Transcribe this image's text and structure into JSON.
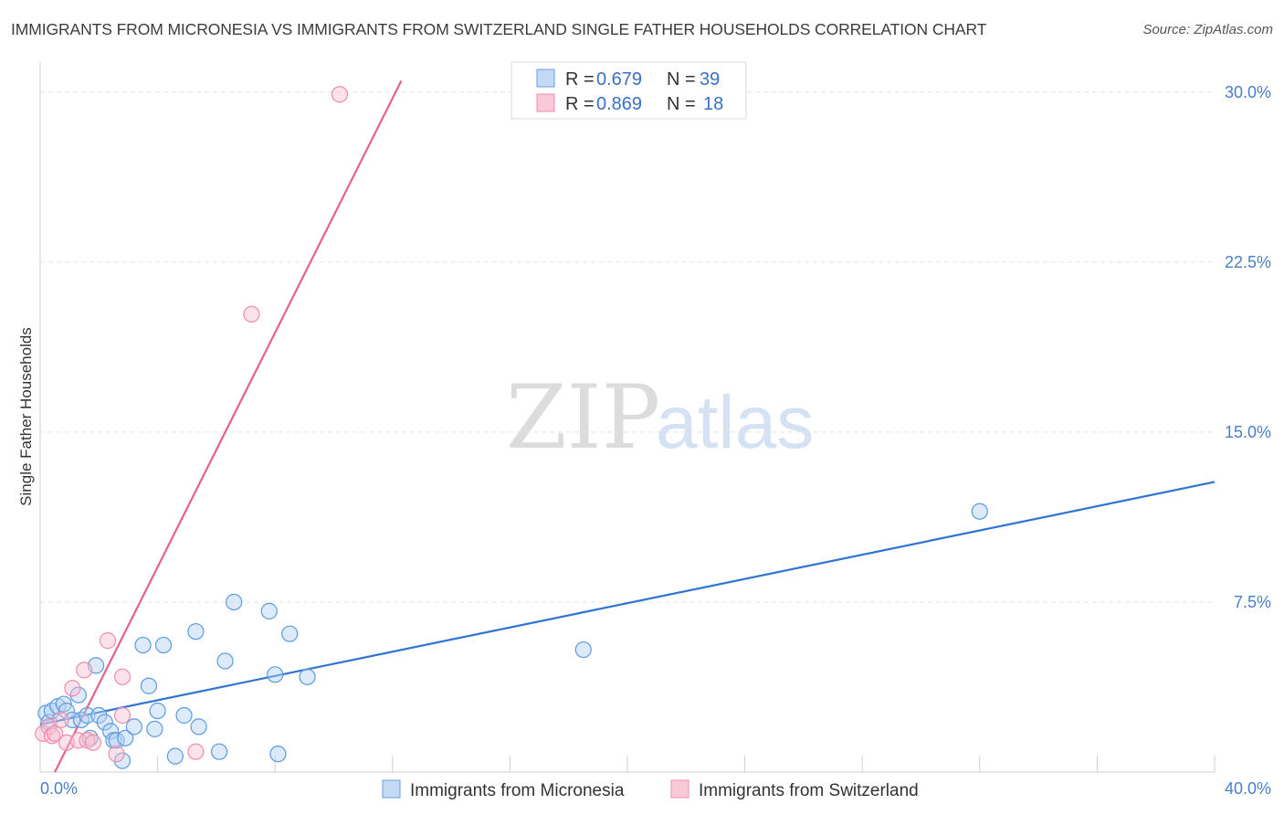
{
  "title": "IMMIGRANTS FROM MICRONESIA VS IMMIGRANTS FROM SWITZERLAND SINGLE FATHER HOUSEHOLDS CORRELATION CHART",
  "source": "Source: ZipAtlas.com",
  "watermark": {
    "zip": "ZIP",
    "atlas": "atlas"
  },
  "colors": {
    "blue": "#5b9be0",
    "blue_line": "#2f74d0",
    "pink": "#f08cab",
    "pink_line": "#e8608f",
    "tick": "#4a7fc8"
  },
  "legend_top": {
    "rows": [
      {
        "r_label": "R = ",
        "r_value": "0.679",
        "n_label": "N = ",
        "n_value": "39"
      },
      {
        "r_label": "R = ",
        "r_value": "0.869",
        "n_label": "N = ",
        "n_value": "18"
      }
    ]
  },
  "chart_data": {
    "type": "scatter",
    "title": "IMMIGRANTS FROM MICRONESIA VS IMMIGRANTS FROM SWITZERLAND SINGLE FATHER HOUSEHOLDS CORRELATION CHART",
    "ylabel": "Single Father Households",
    "xlabel": "",
    "xlim": [
      0,
      40
    ],
    "ylim": [
      0,
      31
    ],
    "x_tick_labels": [
      "0.0%",
      "40.0%"
    ],
    "y_ticks": [
      7.5,
      15.0,
      22.5,
      30.0
    ],
    "y_tick_labels": [
      "7.5%",
      "15.0%",
      "22.5%",
      "30.0%"
    ],
    "series": [
      {
        "name": "Immigrants from Micronesia",
        "color": "blue",
        "points": [
          [
            0.2,
            2.6
          ],
          [
            0.3,
            2.2
          ],
          [
            0.4,
            2.7
          ],
          [
            0.6,
            2.9
          ],
          [
            0.8,
            3.0
          ],
          [
            0.9,
            2.7
          ],
          [
            1.1,
            2.3
          ],
          [
            1.3,
            3.4
          ],
          [
            1.4,
            2.3
          ],
          [
            1.6,
            2.5
          ],
          [
            1.7,
            1.5
          ],
          [
            1.9,
            4.7
          ],
          [
            2.0,
            2.5
          ],
          [
            2.2,
            2.2
          ],
          [
            2.4,
            1.8
          ],
          [
            2.5,
            1.4
          ],
          [
            2.6,
            1.4
          ],
          [
            2.8,
            0.5
          ],
          [
            2.9,
            1.5
          ],
          [
            3.2,
            2.0
          ],
          [
            3.5,
            5.6
          ],
          [
            3.7,
            3.8
          ],
          [
            3.9,
            1.9
          ],
          [
            4.0,
            2.7
          ],
          [
            4.2,
            5.6
          ],
          [
            4.6,
            0.7
          ],
          [
            4.9,
            2.5
          ],
          [
            5.3,
            6.2
          ],
          [
            5.4,
            2.0
          ],
          [
            6.1,
            0.9
          ],
          [
            6.3,
            4.9
          ],
          [
            6.6,
            7.5
          ],
          [
            7.8,
            7.1
          ],
          [
            8.0,
            4.3
          ],
          [
            8.1,
            0.8
          ],
          [
            8.5,
            6.1
          ],
          [
            9.1,
            4.2
          ],
          [
            18.5,
            5.4
          ],
          [
            32.0,
            11.5
          ]
        ],
        "trend": [
          [
            0,
            2.1
          ],
          [
            40,
            12.8
          ]
        ]
      },
      {
        "name": "Immigrants from Switzerland",
        "color": "pink",
        "points": [
          [
            0.1,
            1.7
          ],
          [
            0.3,
            2.0
          ],
          [
            0.4,
            1.6
          ],
          [
            0.5,
            1.7
          ],
          [
            0.7,
            2.3
          ],
          [
            0.9,
            1.3
          ],
          [
            1.1,
            3.7
          ],
          [
            1.3,
            1.4
          ],
          [
            1.5,
            4.5
          ],
          [
            1.6,
            1.4
          ],
          [
            1.8,
            1.3
          ],
          [
            2.3,
            5.8
          ],
          [
            2.6,
            0.8
          ],
          [
            2.8,
            4.2
          ],
          [
            2.8,
            2.5
          ],
          [
            5.3,
            0.9
          ],
          [
            7.2,
            20.2
          ],
          [
            10.2,
            29.9
          ]
        ],
        "trend": [
          [
            0.5,
            0.0
          ],
          [
            12.3,
            30.5
          ]
        ]
      }
    ],
    "legend": [
      "Immigrants from Micronesia",
      "Immigrants from Switzerland"
    ]
  }
}
